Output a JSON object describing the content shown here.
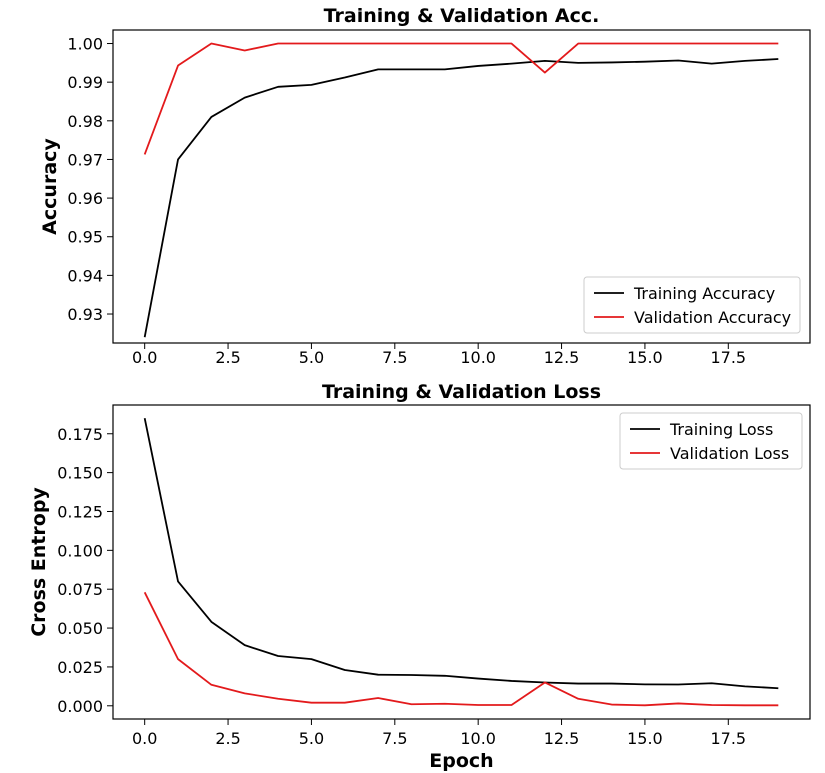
{
  "chart_data": [
    {
      "type": "line",
      "title": "Training & Validation Acc.",
      "xlabel": "",
      "ylabel": "Accuracy",
      "xlim": [
        -0.95,
        19.95
      ],
      "ylim": [
        0.9225,
        1.0035
      ],
      "xticks": [
        0.0,
        2.5,
        5.0,
        7.5,
        10.0,
        12.5,
        15.0,
        17.5
      ],
      "xtick_labels": [
        "0.0",
        "2.5",
        "5.0",
        "7.5",
        "10.0",
        "12.5",
        "15.0",
        "17.5"
      ],
      "yticks": [
        0.93,
        0.94,
        0.95,
        0.96,
        0.97,
        0.98,
        0.99,
        1.0
      ],
      "ytick_labels": [
        "0.93",
        "0.94",
        "0.95",
        "0.96",
        "0.97",
        "0.98",
        "0.99",
        "1.00"
      ],
      "grid": false,
      "legend_position": "lower-right",
      "x": [
        0,
        1,
        2,
        3,
        4,
        5,
        6,
        7,
        8,
        9,
        10,
        11,
        12,
        13,
        14,
        15,
        16,
        17,
        18,
        19
      ],
      "series": [
        {
          "name": "Training Accuracy",
          "color": "#000000",
          "values": [
            0.924,
            0.97,
            0.981,
            0.986,
            0.9888,
            0.9893,
            0.9912,
            0.9933,
            0.9933,
            0.9933,
            0.9942,
            0.9948,
            0.9955,
            0.995,
            0.9951,
            0.9953,
            0.9956,
            0.9948,
            0.9955,
            0.996
          ]
        },
        {
          "name": "Validation Accuracy",
          "color": "#e31a1c",
          "values": [
            0.9713,
            0.9943,
            1.0,
            0.9982,
            1.0,
            1.0,
            1.0,
            1.0,
            1.0,
            1.0,
            1.0,
            1.0,
            0.9925,
            1.0,
            1.0,
            1.0,
            1.0,
            1.0,
            1.0,
            1.0
          ]
        }
      ]
    },
    {
      "type": "line",
      "title": "Training & Validation Loss",
      "xlabel": "Epoch",
      "ylabel": "Cross Entropy",
      "xlim": [
        -0.95,
        19.95
      ],
      "ylim": [
        -0.0085,
        0.1935
      ],
      "xticks": [
        0.0,
        2.5,
        5.0,
        7.5,
        10.0,
        12.5,
        15.0,
        17.5
      ],
      "xtick_labels": [
        "0.0",
        "2.5",
        "5.0",
        "7.5",
        "10.0",
        "12.5",
        "15.0",
        "17.5"
      ],
      "yticks": [
        0.0,
        0.025,
        0.05,
        0.075,
        0.1,
        0.125,
        0.15,
        0.175
      ],
      "ytick_labels": [
        "0.000",
        "0.025",
        "0.050",
        "0.075",
        "0.100",
        "0.125",
        "0.150",
        "0.175"
      ],
      "grid": false,
      "legend_position": "upper-right",
      "x": [
        0,
        1,
        2,
        3,
        4,
        5,
        6,
        7,
        8,
        9,
        10,
        11,
        12,
        13,
        14,
        15,
        16,
        17,
        18,
        19
      ],
      "series": [
        {
          "name": "Training Loss",
          "color": "#000000",
          "values": [
            0.185,
            0.08,
            0.054,
            0.039,
            0.032,
            0.03,
            0.023,
            0.02,
            0.0198,
            0.0193,
            0.0175,
            0.016,
            0.015,
            0.0143,
            0.0143,
            0.0138,
            0.0137,
            0.0145,
            0.0125,
            0.0113
          ]
        },
        {
          "name": "Validation Loss",
          "color": "#e31a1c",
          "values": [
            0.073,
            0.03,
            0.0135,
            0.008,
            0.0045,
            0.002,
            0.002,
            0.005,
            0.001,
            0.0013,
            0.0005,
            0.0005,
            0.015,
            0.0045,
            0.0008,
            0.0003,
            0.0015,
            0.0005,
            0.0003,
            0.0003
          ]
        }
      ]
    }
  ]
}
